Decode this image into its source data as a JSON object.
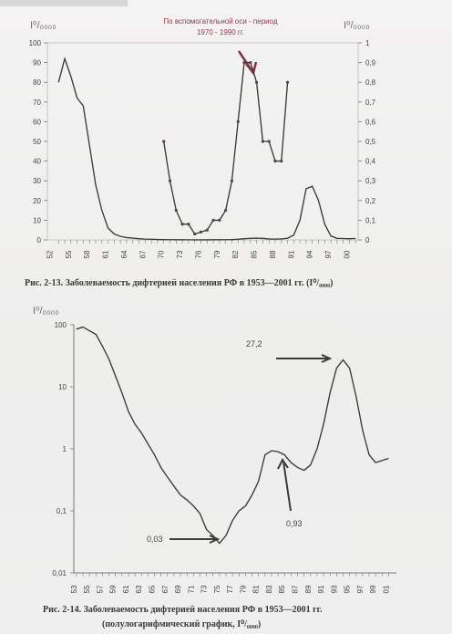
{
  "chart_data": [
    {
      "type": "line",
      "title": "",
      "xlabel": "",
      "ylabel_left": "I⁰/₀₀₀₀",
      "ylabel_right": "I⁰/₀₀₀₀",
      "left_ylim": [
        0,
        100
      ],
      "right_ylim": [
        0,
        1
      ],
      "left_ticks": [
        "0",
        "10",
        "20",
        "30",
        "40",
        "50",
        "60",
        "70",
        "80",
        "90",
        "100"
      ],
      "right_ticks": [
        "0",
        "0,1",
        "0,2",
        "0,3",
        "0,4",
        "0,5",
        "0,6",
        "0,7",
        "0,8",
        "0,9",
        "1"
      ],
      "x_tick_labels": [
        "52",
        "55",
        "58",
        "61",
        "64",
        "67",
        "70",
        "73",
        "76",
        "79",
        "82",
        "85",
        "88",
        "91",
        "94",
        "97",
        "00"
      ],
      "annotation": {
        "line1": "По вспомогательной оси - период",
        "line2": "1970 - 1990 гг."
      },
      "caption": "Рис. 2-13. Заболеваемость дифтерией населения РФ в 1953—2001 гг. (I⁰/₀₀₀₀)",
      "series": [
        {
          "axis": "left",
          "x": [
            1953,
            1954,
            1955,
            1956,
            1957,
            1958,
            1959,
            1960,
            1961,
            1962,
            1963,
            1964,
            1965,
            1966,
            1967,
            1968,
            1969,
            1970,
            1971,
            1972,
            1973,
            1974,
            1975,
            1976,
            1977,
            1978,
            1979,
            1980,
            1981,
            1982,
            1983,
            1984,
            1985,
            1986,
            1987,
            1988,
            1989,
            1990,
            1991,
            1992,
            1993,
            1994,
            1995,
            1996,
            1997,
            1998,
            1999,
            2000,
            2001
          ],
          "values": [
            80,
            92,
            83,
            72,
            68,
            48,
            28,
            15,
            6,
            3,
            1.8,
            1.2,
            0.9,
            0.6,
            0.4,
            0.3,
            0.2,
            0.15,
            0.12,
            0.1,
            0.08,
            0.06,
            0.05,
            0.04,
            0.05,
            0.08,
            0.1,
            0.12,
            0.15,
            0.3,
            0.6,
            0.8,
            0.9,
            0.8,
            0.5,
            0.4,
            0.5,
            0.8,
            2.5,
            10,
            26,
            27.2,
            20,
            8,
            2,
            0.8,
            0.7,
            0.6,
            0.7
          ]
        },
        {
          "axis": "right",
          "x": [
            1970,
            1971,
            1972,
            1973,
            1974,
            1975,
            1976,
            1977,
            1978,
            1979,
            1980,
            1981,
            1982,
            1983,
            1984,
            1985,
            1986,
            1987,
            1988,
            1989,
            1990
          ],
          "values": [
            0.5,
            0.3,
            0.15,
            0.08,
            0.08,
            0.03,
            0.04,
            0.05,
            0.1,
            0.1,
            0.15,
            0.3,
            0.6,
            0.9,
            0.9,
            0.8,
            0.5,
            0.5,
            0.4,
            0.4,
            0.8
          ]
        }
      ]
    },
    {
      "type": "line",
      "title": "",
      "xlabel": "",
      "ylabel": "I⁰/₀₀₀₀",
      "yscale": "log",
      "ylim": [
        0.01,
        100
      ],
      "y_ticks": [
        "100",
        "10",
        "1",
        "0,1",
        "0,01"
      ],
      "x_tick_labels": [
        "53",
        "55",
        "57",
        "59",
        "61",
        "63",
        "65",
        "67",
        "69",
        "71",
        "73",
        "75",
        "77",
        "79",
        "81",
        "83",
        "85",
        "87",
        "89",
        "91",
        "93",
        "95",
        "97",
        "99",
        "01"
      ],
      "annotations": [
        "27,2",
        "0,93",
        "0,03"
      ],
      "caption_line1": "Рис. 2-14. Заболеваемость дифтерией населения РФ в 1953—2001 гг.",
      "caption_line2": "(полулогарифмический график, I⁰/₀₀₀₀)",
      "series": [
        {
          "x": [
            1953,
            1954,
            1955,
            1956,
            1957,
            1958,
            1959,
            1960,
            1961,
            1962,
            1963,
            1964,
            1965,
            1966,
            1967,
            1968,
            1969,
            1970,
            1971,
            1972,
            1973,
            1974,
            1975,
            1976,
            1977,
            1978,
            1979,
            1980,
            1981,
            1982,
            1983,
            1984,
            1985,
            1986,
            1987,
            1988,
            1989,
            1990,
            1991,
            1992,
            1993,
            1994,
            1995,
            1996,
            1997,
            1998,
            1999,
            2000,
            2001
          ],
          "values": [
            85,
            92,
            80,
            70,
            45,
            28,
            15,
            8,
            4,
            2.5,
            1.8,
            1.2,
            0.8,
            0.5,
            0.35,
            0.25,
            0.18,
            0.15,
            0.12,
            0.09,
            0.05,
            0.04,
            0.03,
            0.04,
            0.07,
            0.1,
            0.12,
            0.18,
            0.3,
            0.8,
            0.93,
            0.9,
            0.8,
            0.6,
            0.5,
            0.45,
            0.55,
            1,
            2.5,
            8,
            20,
            27.2,
            20,
            7,
            2,
            0.8,
            0.6,
            0.65,
            0.7
          ]
        }
      ]
    }
  ]
}
